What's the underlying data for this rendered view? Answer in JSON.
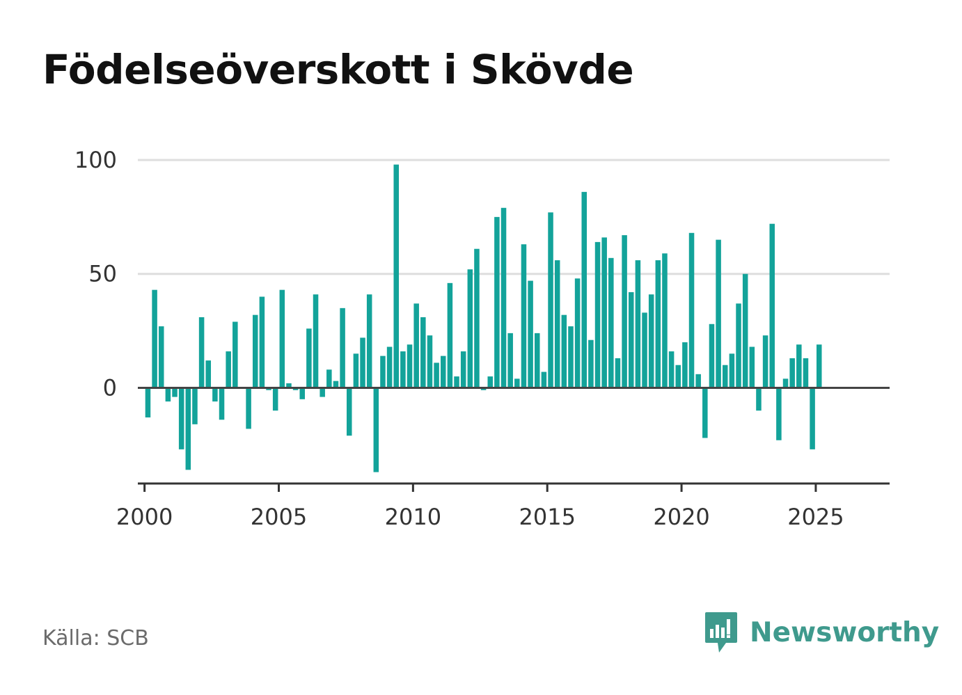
{
  "title": "Födelseöverskott i Skövde",
  "source": "Källa: SCB",
  "brand": {
    "name": "Newsworthy",
    "icon": "newsworthy-logo-icon",
    "color": "#3f9a8d"
  },
  "chart_data": {
    "type": "bar",
    "title": "Födelseöverskott i Skövde",
    "xlabel": "",
    "ylabel": "",
    "bar_color": "#13a39a",
    "grid": true,
    "ylim": [
      -42,
      100
    ],
    "yticks": [
      0,
      50,
      100
    ],
    "xlim": [
      1999.75,
      2027.75
    ],
    "xticks": [
      2000,
      2005,
      2010,
      2015,
      2020,
      2025
    ],
    "x_unit": "quarter",
    "start": "2000 Q1",
    "values": [
      -13,
      43,
      27,
      -6,
      -4,
      -27,
      -36,
      -16,
      31,
      12,
      -6,
      -14,
      16,
      29,
      0,
      -18,
      32,
      40,
      -1,
      -10,
      43,
      2,
      -1,
      -5,
      26,
      41,
      -4,
      8,
      3,
      35,
      -21,
      15,
      22,
      41,
      -37,
      14,
      18,
      98,
      16,
      19,
      37,
      31,
      23,
      11,
      14,
      46,
      5,
      16,
      52,
      61,
      -1,
      5,
      75,
      79,
      24,
      4,
      63,
      47,
      24,
      7,
      77,
      56,
      32,
      27,
      48,
      86,
      21,
      64,
      66,
      57,
      13,
      67,
      42,
      56,
      33,
      41,
      56,
      59,
      16,
      10,
      20,
      68,
      6,
      -22,
      28,
      65,
      10,
      15,
      37,
      50,
      18,
      -10,
      23,
      72,
      -23,
      4,
      13,
      19,
      13,
      -27,
      19
    ]
  }
}
